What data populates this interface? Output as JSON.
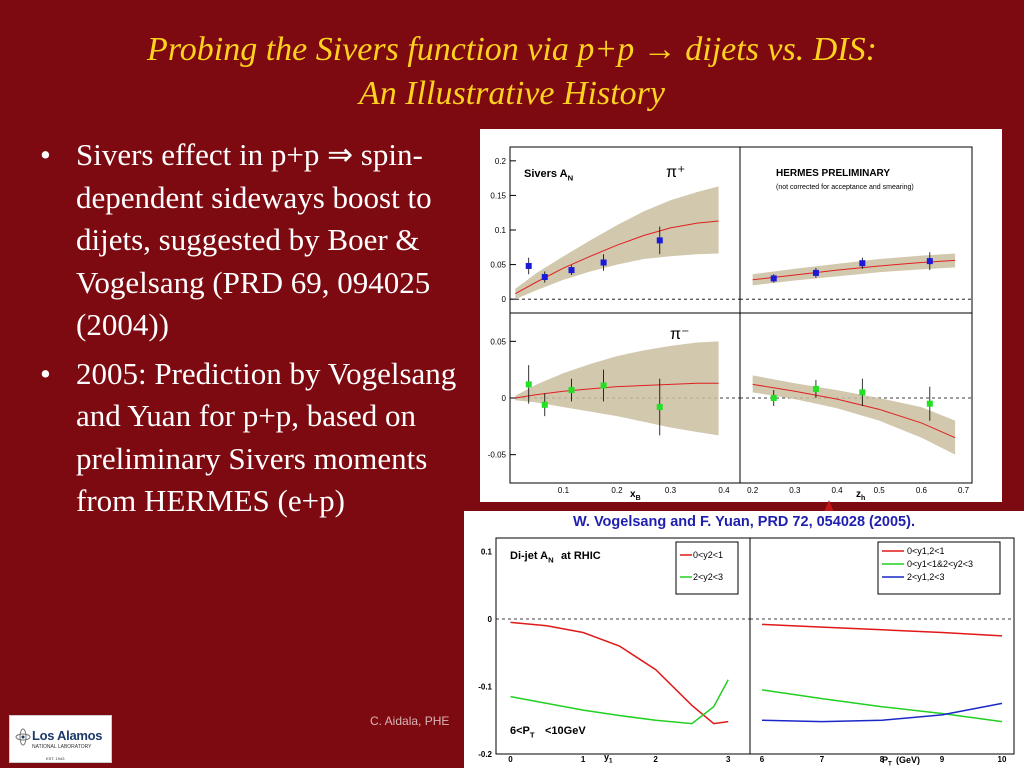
{
  "slide": {
    "title_line1": "Probing the Sivers function via p+p → dijets vs. DIS:",
    "title_line2": "An Illustrative History",
    "bullets": [
      "Sivers effect in p+p ⇒ spin-dependent sideways boost to dijets, suggested by Boer & Vogelsang (PRD 69, 094025 (2004))",
      "2005: Prediction by Vogelsang and Yuan for p+p, based on preliminary Sivers moments from HERMES (e+p)"
    ],
    "footer": "C. Aidala, PHE",
    "logo_name": "Los Alamos",
    "logo_sub": "NATIONAL LABORATORY",
    "logo_est": "EST. 1943",
    "citation": "W. Vogelsang and F. Yuan, PRD 72, 054028 (2005).",
    "colors": {
      "background": "#7d0a11",
      "title": "#ffd21f",
      "text": "#ffffff",
      "citation": "#1f1faf"
    }
  },
  "chart_data": [
    {
      "type": "scatter",
      "panel": "top-left",
      "title": "Sivers A_N",
      "annotation": "π⁺",
      "xlabel": "x_B",
      "ylim": [
        -0.02,
        0.22
      ],
      "xlim": [
        0,
        0.43
      ],
      "yticks": [
        "0",
        "0.05",
        "0.1",
        "0.15",
        "0.2"
      ],
      "points": [
        {
          "x": 0.035,
          "y": 0.048,
          "err": 0.012
        },
        {
          "x": 0.065,
          "y": 0.032,
          "err": 0.008
        },
        {
          "x": 0.115,
          "y": 0.042,
          "err": 0.007
        },
        {
          "x": 0.175,
          "y": 0.053,
          "err": 0.012
        },
        {
          "x": 0.28,
          "y": 0.085,
          "err": 0.02
        }
      ],
      "curve": [
        [
          0.01,
          0.008
        ],
        [
          0.05,
          0.025
        ],
        [
          0.1,
          0.045
        ],
        [
          0.15,
          0.062
        ],
        [
          0.2,
          0.078
        ],
        [
          0.25,
          0.092
        ],
        [
          0.3,
          0.103
        ],
        [
          0.35,
          0.11
        ],
        [
          0.39,
          0.113
        ]
      ],
      "band": [
        [
          0.01,
          0.0,
          0.015
        ],
        [
          0.05,
          0.013,
          0.038
        ],
        [
          0.1,
          0.028,
          0.062
        ],
        [
          0.15,
          0.04,
          0.085
        ],
        [
          0.2,
          0.05,
          0.107
        ],
        [
          0.25,
          0.058,
          0.127
        ],
        [
          0.3,
          0.062,
          0.143
        ],
        [
          0.35,
          0.065,
          0.155
        ],
        [
          0.39,
          0.066,
          0.163
        ]
      ],
      "marker_color": "#1a1ad8"
    },
    {
      "type": "scatter",
      "panel": "top-right",
      "title": "HERMES PRELIMINARY",
      "subtitle": "(not corrected for acceptance and smearing)",
      "xlim": [
        0.17,
        0.72
      ],
      "ylim": [
        -0.02,
        0.22
      ],
      "points": [
        {
          "x": 0.25,
          "y": 0.03,
          "err": 0.006
        },
        {
          "x": 0.35,
          "y": 0.038,
          "err": 0.007
        },
        {
          "x": 0.46,
          "y": 0.052,
          "err": 0.008
        },
        {
          "x": 0.62,
          "y": 0.055,
          "err": 0.013
        }
      ],
      "curve": [
        [
          0.2,
          0.028
        ],
        [
          0.3,
          0.035
        ],
        [
          0.4,
          0.042
        ],
        [
          0.5,
          0.048
        ],
        [
          0.6,
          0.053
        ],
        [
          0.68,
          0.056
        ]
      ],
      "band": [
        [
          0.2,
          0.02,
          0.036
        ],
        [
          0.3,
          0.027,
          0.044
        ],
        [
          0.4,
          0.033,
          0.051
        ],
        [
          0.5,
          0.039,
          0.058
        ],
        [
          0.6,
          0.043,
          0.063
        ],
        [
          0.68,
          0.046,
          0.066
        ]
      ],
      "marker_color": "#1a1ad8"
    },
    {
      "type": "scatter",
      "panel": "bottom-left",
      "annotation": "π⁻",
      "xlabel": "x_B",
      "xlim": [
        0,
        0.43
      ],
      "ylim": [
        -0.075,
        0.075
      ],
      "yticks": [
        "-0.05",
        "0",
        "0.05"
      ],
      "xticks": [
        "0.1",
        "0.2",
        "0.3",
        "0.4"
      ],
      "points": [
        {
          "x": 0.035,
          "y": 0.012,
          "err": 0.017
        },
        {
          "x": 0.065,
          "y": -0.006,
          "err": 0.01
        },
        {
          "x": 0.115,
          "y": 0.007,
          "err": 0.01
        },
        {
          "x": 0.175,
          "y": 0.011,
          "err": 0.014
        },
        {
          "x": 0.28,
          "y": -0.008,
          "err": 0.025
        }
      ],
      "curve": [
        [
          0.01,
          0.0
        ],
        [
          0.05,
          0.003
        ],
        [
          0.1,
          0.006
        ],
        [
          0.15,
          0.008
        ],
        [
          0.2,
          0.01
        ],
        [
          0.25,
          0.011
        ],
        [
          0.3,
          0.012
        ],
        [
          0.35,
          0.013
        ],
        [
          0.39,
          0.013
        ]
      ],
      "band": [
        [
          0.01,
          -0.002,
          0.002
        ],
        [
          0.05,
          -0.004,
          0.012
        ],
        [
          0.1,
          -0.008,
          0.022
        ],
        [
          0.15,
          -0.012,
          0.03
        ],
        [
          0.2,
          -0.016,
          0.037
        ],
        [
          0.25,
          -0.021,
          0.042
        ],
        [
          0.3,
          -0.026,
          0.046
        ],
        [
          0.35,
          -0.03,
          0.049
        ],
        [
          0.39,
          -0.033,
          0.05
        ]
      ],
      "marker_color": "#22e022"
    },
    {
      "type": "scatter",
      "panel": "bottom-right",
      "xlabel": "z_h",
      "xlim": [
        0.17,
        0.72
      ],
      "ylim": [
        -0.075,
        0.075
      ],
      "xticks": [
        "0.2",
        "0.3",
        "0.4",
        "0.5",
        "0.6",
        "0.7"
      ],
      "points": [
        {
          "x": 0.25,
          "y": 0.0,
          "err": 0.007
        },
        {
          "x": 0.35,
          "y": 0.008,
          "err": 0.008
        },
        {
          "x": 0.46,
          "y": 0.005,
          "err": 0.012
        },
        {
          "x": 0.62,
          "y": -0.005,
          "err": 0.015
        }
      ],
      "curve": [
        [
          0.2,
          0.012
        ],
        [
          0.3,
          0.006
        ],
        [
          0.4,
          -0.001
        ],
        [
          0.5,
          -0.01
        ],
        [
          0.6,
          -0.022
        ],
        [
          0.68,
          -0.035
        ]
      ],
      "band": [
        [
          0.2,
          0.005,
          0.02
        ],
        [
          0.3,
          -0.001,
          0.013
        ],
        [
          0.4,
          -0.009,
          0.007
        ],
        [
          0.5,
          -0.02,
          0.0
        ],
        [
          0.6,
          -0.035,
          -0.008
        ],
        [
          0.68,
          -0.05,
          -0.02
        ]
      ],
      "marker_color": "#22e022"
    },
    {
      "type": "line",
      "panel": "dijet-left",
      "title": "Di-jet A_N at RHIC",
      "annotation": "6<P_T<10GeV",
      "xlabel": "y_1",
      "xlim": [
        -0.2,
        3.3
      ],
      "ylim": [
        -0.2,
        0.12
      ],
      "xticks": [
        "0",
        "1",
        "2",
        "3"
      ],
      "yticks": [
        "-0.2",
        "-0.1",
        "0",
        "0.1"
      ],
      "series": [
        {
          "name": "0<y_2<1",
          "color": "#e01818",
          "values": [
            [
              0,
              -0.005
            ],
            [
              0.5,
              -0.01
            ],
            [
              1,
              -0.02
            ],
            [
              1.5,
              -0.04
            ],
            [
              2,
              -0.075
            ],
            [
              2.5,
              -0.128
            ],
            [
              2.8,
              -0.155
            ],
            [
              3,
              -0.152
            ]
          ]
        },
        {
          "name": "2<y_2<3",
          "color": "#22d022",
          "values": [
            [
              0,
              -0.115
            ],
            [
              0.5,
              -0.125
            ],
            [
              1,
              -0.135
            ],
            [
              1.5,
              -0.143
            ],
            [
              2,
              -0.15
            ],
            [
              2.5,
              -0.155
            ],
            [
              2.8,
              -0.13
            ],
            [
              3,
              -0.09
            ]
          ]
        }
      ]
    },
    {
      "type": "line",
      "panel": "dijet-right",
      "xlabel": "P_T(GeV)",
      "xlim": [
        5.8,
        10.2
      ],
      "ylim": [
        -0.2,
        0.12
      ],
      "xticks": [
        "6",
        "7",
        "8",
        "9",
        "10"
      ],
      "series": [
        {
          "name": "0<y_1,2<1",
          "color": "#e01818",
          "values": [
            [
              6,
              -0.008
            ],
            [
              7,
              -0.012
            ],
            [
              8,
              -0.016
            ],
            [
              9,
              -0.02
            ],
            [
              10,
              -0.025
            ]
          ]
        },
        {
          "name": "0<y_1<1&2<y_2<3",
          "color": "#22d022",
          "values": [
            [
              6,
              -0.105
            ],
            [
              7,
              -0.118
            ],
            [
              8,
              -0.13
            ],
            [
              9,
              -0.14
            ],
            [
              10,
              -0.152
            ]
          ]
        },
        {
          "name": "2<y_1,2<3",
          "color": "#1a28c8",
          "values": [
            [
              6,
              -0.15
            ],
            [
              7,
              -0.152
            ],
            [
              8,
              -0.15
            ],
            [
              9,
              -0.142
            ],
            [
              10,
              -0.125
            ]
          ]
        }
      ]
    }
  ]
}
